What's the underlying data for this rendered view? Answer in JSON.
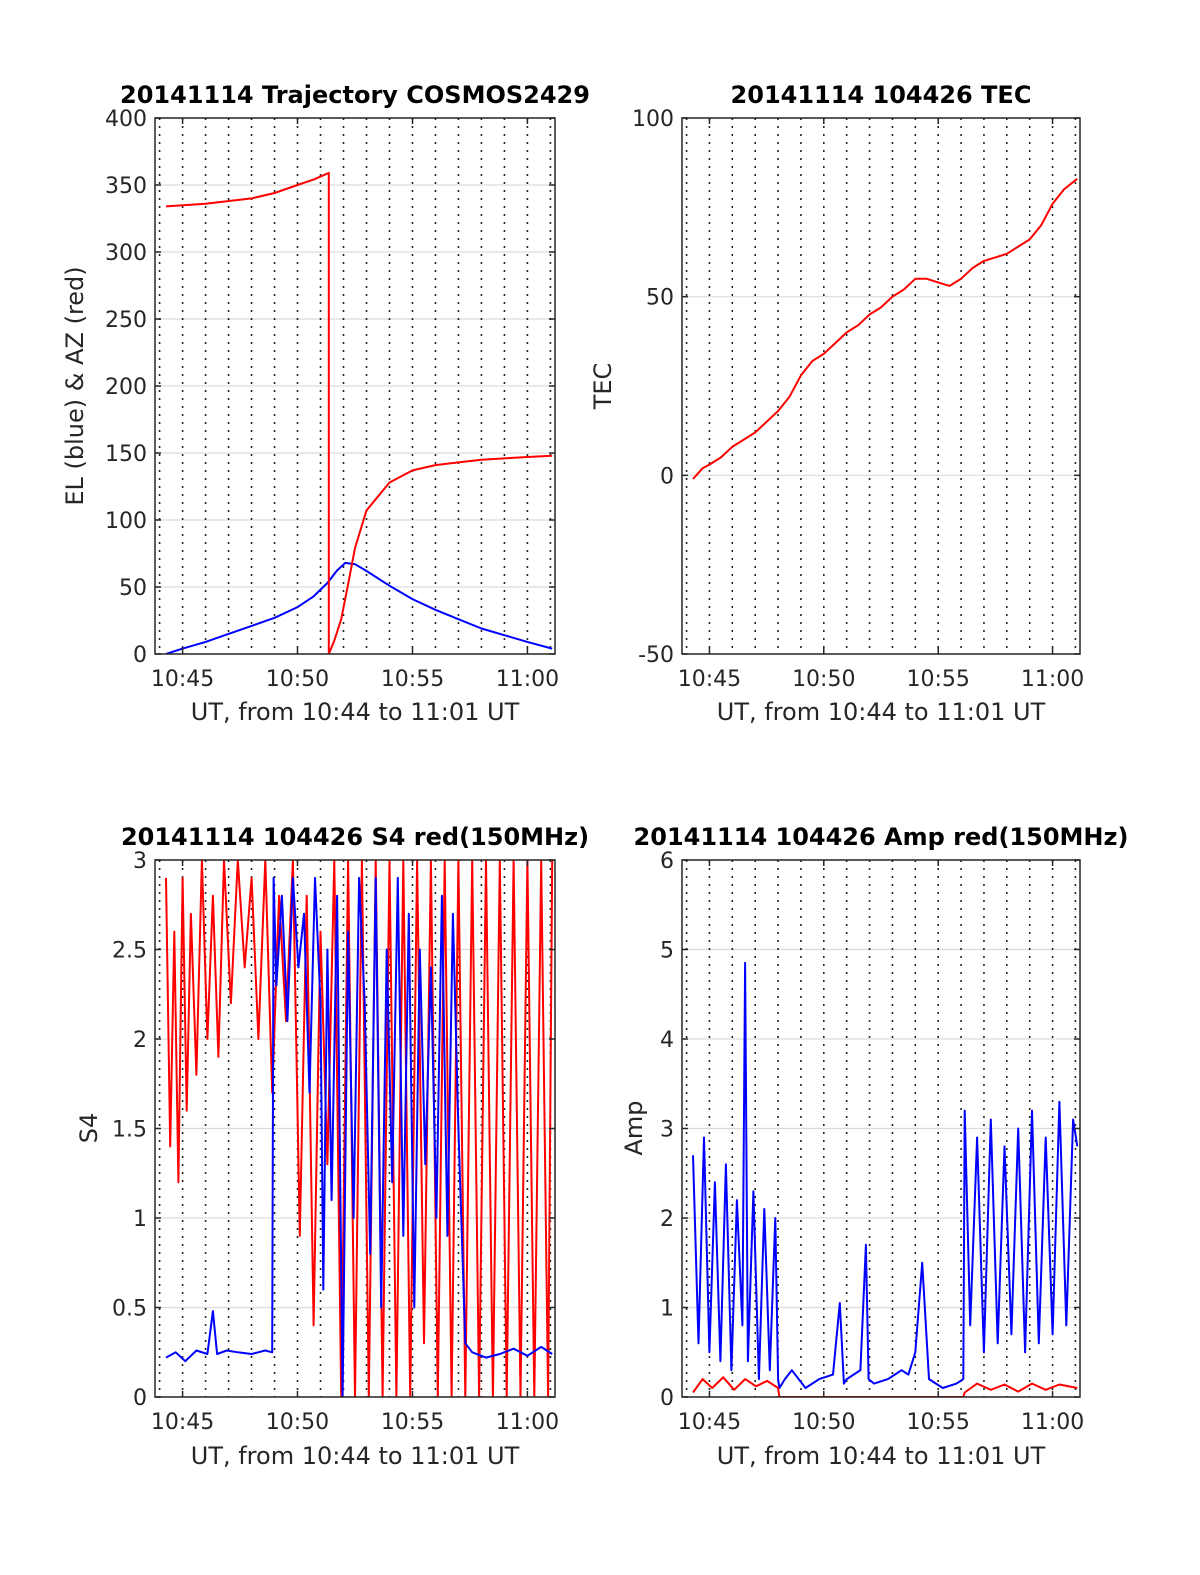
{
  "chart_data": [
    {
      "type": "line",
      "title": "20141114 Trajectory COSMOS2429",
      "xlabel": "UT, from 10:44 to 11:01 UT",
      "ylabel": "EL (blue) & AZ (red)",
      "xlim": [
        10.73,
        11.02
      ],
      "ylim": [
        0,
        400
      ],
      "x_ticks": [
        10.75,
        10.8333,
        10.9167,
        11.0
      ],
      "x_tick_labels": [
        "10:45",
        "10:50",
        "10:55",
        "11:00"
      ],
      "y_ticks": [
        0,
        50,
        100,
        150,
        200,
        250,
        300,
        350,
        400
      ],
      "y_tick_labels": [
        "0",
        "50",
        "100",
        "150",
        "200",
        "250",
        "300",
        "350",
        "400"
      ],
      "minute_grid": true,
      "series": [
        {
          "name": "EL",
          "color": "#0000ff",
          "x": [
            10.738,
            10.75,
            10.7667,
            10.7833,
            10.8,
            10.8167,
            10.8333,
            10.845,
            10.855,
            10.8617,
            10.868,
            10.875,
            10.8833,
            10.9,
            10.9167,
            10.9333,
            10.95,
            10.9667,
            10.9833,
            11.0,
            11.018
          ],
          "y": [
            0,
            4,
            9,
            15,
            21,
            27,
            35,
            43,
            53,
            62,
            68,
            67,
            62,
            51,
            41,
            33,
            26,
            19,
            14,
            9,
            4
          ]
        },
        {
          "name": "AZ",
          "color": "#ff0000",
          "x": [
            10.738,
            10.7667,
            10.8,
            10.8167,
            10.8333,
            10.845,
            10.856,
            10.856,
            10.856,
            10.86,
            10.865,
            10.87,
            10.875,
            10.8833,
            10.9,
            10.9167,
            10.9333,
            10.95,
            10.9667,
            10.9833,
            11.0,
            11.018
          ],
          "y": [
            334,
            336,
            340,
            344,
            350,
            354,
            359,
            0,
            0,
            10,
            26,
            52,
            79,
            107,
            128,
            137,
            141,
            143,
            145,
            146,
            147,
            148
          ]
        }
      ]
    },
    {
      "type": "line",
      "title": "20141114 104426 TEC",
      "xlabel": "UT, from 10:44 to 11:01 UT",
      "ylabel": "TEC",
      "xlim": [
        10.73,
        11.02
      ],
      "ylim": [
        -50,
        100
      ],
      "x_ticks": [
        10.75,
        10.8333,
        10.9167,
        11.0
      ],
      "x_tick_labels": [
        "10:45",
        "10:50",
        "10:55",
        "11:00"
      ],
      "y_ticks": [
        -50,
        0,
        50,
        100
      ],
      "y_tick_labels": [
        "-50",
        "0",
        "50",
        "100"
      ],
      "minute_grid": true,
      "series": [
        {
          "name": "TEC",
          "color": "#ff0000",
          "x": [
            10.738,
            10.745,
            10.75,
            10.7583,
            10.7667,
            10.775,
            10.7833,
            10.7917,
            10.8,
            10.8083,
            10.8167,
            10.825,
            10.8333,
            10.8417,
            10.85,
            10.8583,
            10.8667,
            10.875,
            10.8833,
            10.8917,
            10.9,
            10.9083,
            10.9167,
            10.925,
            10.9333,
            10.9417,
            10.95,
            10.9583,
            10.9667,
            10.975,
            10.9833,
            10.9917,
            11.0,
            11.0083,
            11.018
          ],
          "y": [
            -1,
            2,
            3,
            5,
            8,
            10,
            12,
            15,
            18,
            22,
            28,
            32,
            34,
            37,
            40,
            42,
            45,
            47,
            50,
            52,
            55,
            55,
            54,
            53,
            55,
            58,
            60,
            61,
            62,
            64,
            66,
            70,
            76,
            80,
            83
          ]
        }
      ]
    },
    {
      "type": "line",
      "title": "20141114 104426 S4 red(150MHz)",
      "xlabel": "UT, from 10:44 to 11:01 UT",
      "ylabel": "S4",
      "xlim": [
        10.73,
        11.02
      ],
      "ylim": [
        0,
        3
      ],
      "x_ticks": [
        10.75,
        10.8333,
        10.9167,
        11.0
      ],
      "x_tick_labels": [
        "10:45",
        "10:50",
        "10:55",
        "11:00"
      ],
      "y_ticks": [
        0,
        0.5,
        1,
        1.5,
        2,
        2.5,
        3
      ],
      "y_tick_labels": [
        "0",
        "0.5",
        "1",
        "1.5",
        "2",
        "2.5",
        "3"
      ],
      "minute_grid": true,
      "series": [
        {
          "name": "S4 red",
          "color": "#ff0000",
          "x": [
            10.738,
            10.741,
            10.744,
            10.747,
            10.75,
            10.753,
            10.756,
            10.76,
            10.764,
            10.768,
            10.772,
            10.776,
            10.78,
            10.785,
            10.79,
            10.795,
            10.8,
            10.805,
            10.81,
            10.815,
            10.82,
            10.825,
            10.83,
            10.835,
            10.84,
            10.845,
            10.85,
            10.855,
            10.86,
            10.865,
            10.87,
            10.875,
            10.88,
            10.885,
            10.89,
            10.895,
            10.9,
            10.905,
            10.91,
            10.915,
            10.92,
            10.925,
            10.93,
            10.935,
            10.94,
            10.945,
            10.95,
            10.955,
            10.96,
            10.965,
            10.97,
            10.975,
            10.98,
            10.985,
            10.99,
            10.995,
            11.0,
            11.005,
            11.01,
            11.015,
            11.018
          ],
          "y": [
            2.9,
            1.4,
            2.6,
            1.2,
            2.9,
            1.6,
            2.7,
            1.8,
            3.0,
            2.0,
            2.8,
            1.9,
            3.0,
            2.2,
            3.0,
            2.4,
            2.9,
            2.0,
            3.0,
            1.7,
            2.8,
            2.1,
            3.0,
            0.9,
            2.8,
            0.4,
            2.6,
            1.3,
            3.0,
            0.0,
            3.0,
            0.0,
            3.0,
            0.0,
            3.0,
            0.0,
            3.0,
            0.0,
            3.0,
            0.0,
            3.0,
            0.3,
            3.0,
            0.0,
            3.0,
            0.0,
            3.0,
            0.0,
            3.0,
            0.0,
            3.0,
            0.0,
            3.0,
            0.0,
            3.0,
            0.0,
            3.0,
            0.0,
            3.0,
            0.0,
            3.0
          ]
        },
        {
          "name": "S4 blue",
          "color": "#0000ff",
          "x": [
            10.738,
            10.745,
            10.752,
            10.76,
            10.768,
            10.772,
            10.775,
            10.782,
            10.79,
            10.8,
            10.81,
            10.815,
            10.816,
            10.818,
            10.822,
            10.826,
            10.83,
            10.834,
            10.838,
            10.842,
            10.846,
            10.85,
            10.852,
            10.855,
            10.858,
            10.862,
            10.866,
            10.87,
            10.874,
            10.878,
            10.882,
            10.886,
            10.89,
            10.894,
            10.898,
            10.902,
            10.906,
            10.91,
            10.914,
            10.918,
            10.922,
            10.926,
            10.93,
            10.934,
            10.938,
            10.942,
            10.946,
            10.95,
            10.955,
            10.96,
            10.97,
            10.98,
            10.99,
            11.0,
            11.01,
            11.018
          ],
          "y": [
            0.22,
            0.25,
            0.2,
            0.26,
            0.24,
            0.48,
            0.24,
            0.26,
            0.25,
            0.24,
            0.26,
            0.25,
            2.9,
            2.3,
            2.8,
            2.1,
            2.9,
            2.4,
            2.7,
            1.7,
            2.9,
            2.2,
            0.6,
            2.5,
            1.1,
            2.8,
            0.0,
            2.6,
            1.0,
            2.9,
            2.2,
            0.8,
            2.9,
            0.5,
            2.5,
            1.2,
            2.9,
            0.9,
            2.7,
            0.5,
            2.5,
            1.3,
            2.4,
            1.0,
            2.8,
            0.9,
            2.7,
            1.5,
            0.3,
            0.25,
            0.22,
            0.24,
            0.27,
            0.23,
            0.28,
            0.24
          ]
        }
      ]
    },
    {
      "type": "line",
      "title": "20141114 104426 Amp red(150MHz)",
      "xlabel": "UT, from 10:44 to 11:01 UT",
      "ylabel": "Amp",
      "xlim": [
        10.73,
        11.02
      ],
      "ylim": [
        0,
        6
      ],
      "x_ticks": [
        10.75,
        10.8333,
        10.9167,
        11.0
      ],
      "x_tick_labels": [
        "10:45",
        "10:50",
        "10:55",
        "11:00"
      ],
      "y_ticks": [
        0,
        1,
        2,
        3,
        4,
        5,
        6
      ],
      "y_tick_labels": [
        "0",
        "1",
        "2",
        "3",
        "4",
        "5",
        "6"
      ],
      "minute_grid": true,
      "series": [
        {
          "name": "Amp blue",
          "color": "#0000ff",
          "x": [
            10.738,
            10.742,
            10.746,
            10.75,
            10.754,
            10.758,
            10.762,
            10.766,
            10.77,
            10.774,
            10.776,
            10.778,
            10.782,
            10.786,
            10.79,
            10.794,
            10.798,
            10.8,
            10.801,
            10.805,
            10.81,
            10.82,
            10.83,
            10.84,
            10.845,
            10.848,
            10.85,
            10.86,
            10.864,
            10.866,
            10.87,
            10.88,
            10.89,
            10.895,
            10.9,
            10.905,
            10.91,
            10.92,
            10.93,
            10.935,
            10.936,
            10.94,
            10.945,
            10.95,
            10.955,
            10.96,
            10.965,
            10.97,
            10.975,
            10.98,
            10.985,
            10.99,
            10.995,
            11.0,
            11.005,
            11.01,
            11.015,
            11.018
          ],
          "y": [
            2.7,
            0.6,
            2.9,
            0.5,
            2.4,
            0.4,
            2.6,
            0.3,
            2.2,
            0.8,
            4.85,
            0.4,
            2.3,
            0.2,
            2.1,
            0.3,
            2.0,
            0.2,
            0.1,
            0.2,
            0.3,
            0.1,
            0.2,
            0.25,
            1.05,
            0.15,
            0.2,
            0.3,
            1.7,
            0.2,
            0.15,
            0.2,
            0.3,
            0.25,
            0.5,
            1.5,
            0.2,
            0.1,
            0.15,
            0.2,
            3.2,
            0.8,
            2.9,
            0.5,
            3.1,
            0.6,
            2.8,
            0.7,
            3.0,
            0.5,
            3.2,
            0.6,
            2.9,
            0.7,
            3.3,
            0.8,
            3.1,
            2.8
          ]
        },
        {
          "name": "Amp red",
          "color": "#ff0000",
          "x": [
            10.738,
            10.745,
            10.752,
            10.76,
            10.768,
            10.776,
            10.784,
            10.792,
            10.8,
            10.801,
            10.935,
            10.936,
            10.945,
            10.955,
            10.965,
            10.975,
            10.985,
            10.995,
            11.005,
            11.018
          ],
          "y": [
            0.05,
            0.2,
            0.1,
            0.22,
            0.08,
            0.2,
            0.12,
            0.18,
            0.1,
            0.0,
            0.0,
            0.05,
            0.15,
            0.08,
            0.14,
            0.06,
            0.15,
            0.08,
            0.14,
            0.1
          ]
        }
      ]
    }
  ]
}
